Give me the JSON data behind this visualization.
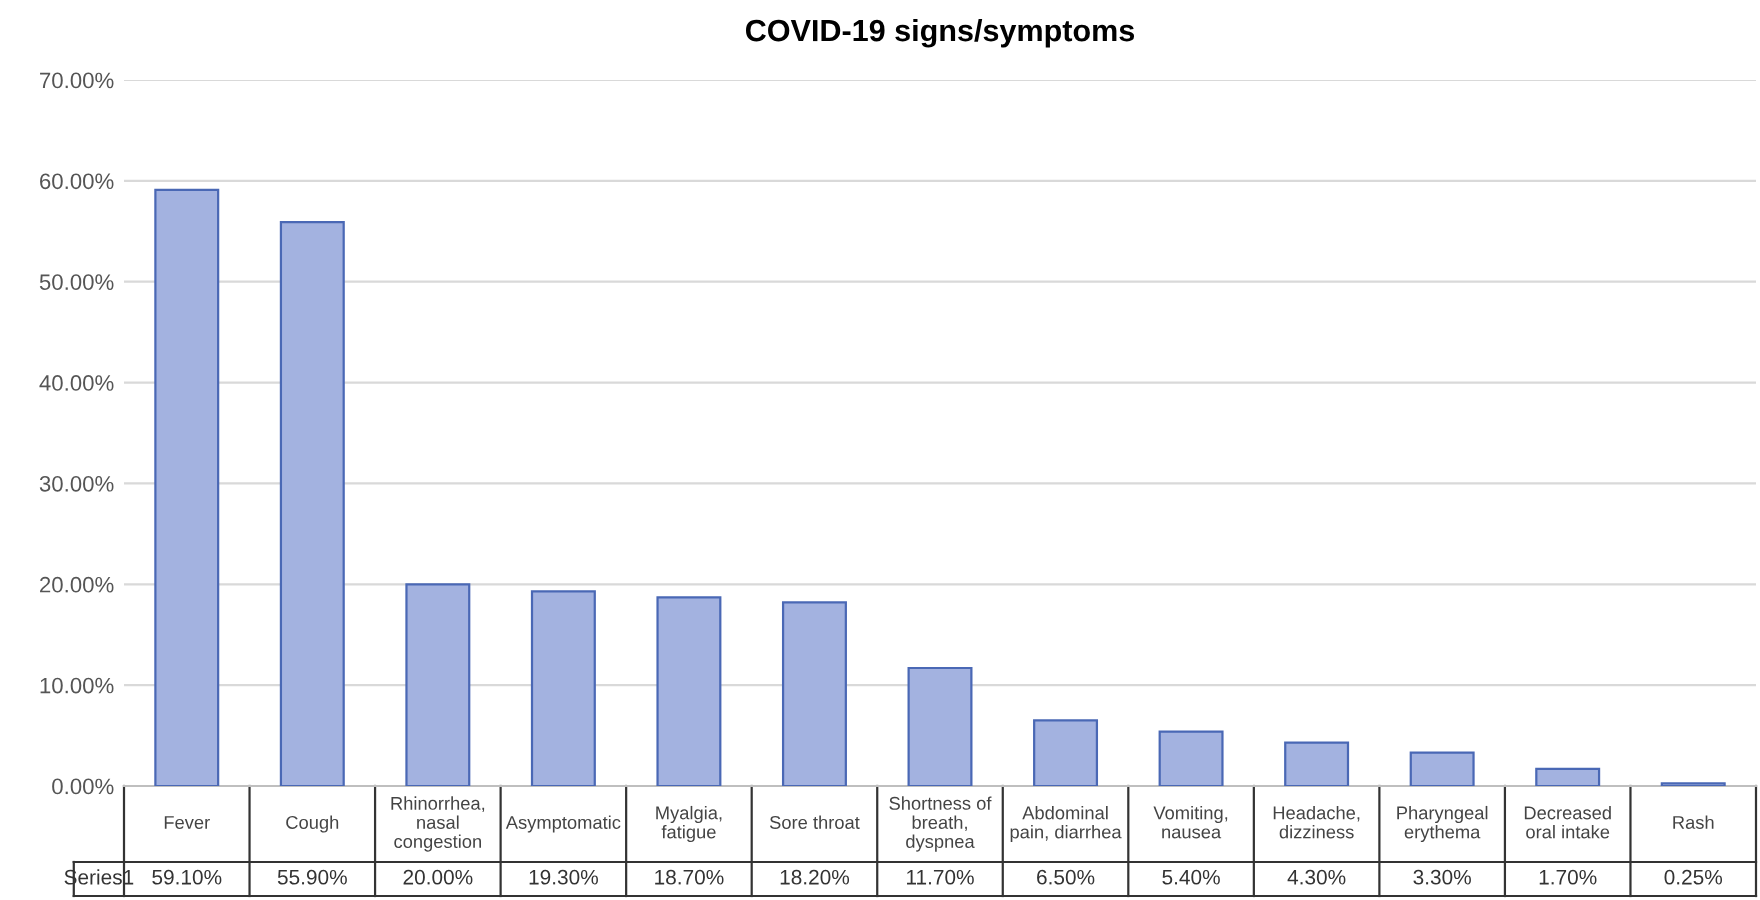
{
  "chart_data": {
    "type": "bar",
    "title": "COVID-19 signs/symptoms",
    "categories": [
      "Fever",
      "Cough",
      "Rhinorrhea,\nnasal\ncongestion",
      "Asymptomatic",
      "Myalgia,\nfatigue",
      "Sore throat",
      "Shortness of\nbreath,\ndyspnea",
      "Abdominal\npain, diarrhea",
      "Vomiting,\nnausea",
      "Headache,\ndizziness",
      "Pharyngeal\nerythema",
      "Decreased\noral intake",
      "Rash"
    ],
    "series": [
      {
        "name": "Series1",
        "color": "#a3b2e0",
        "values": [
          59.1,
          55.9,
          20.0,
          19.3,
          18.7,
          18.2,
          11.7,
          6.5,
          5.4,
          4.3,
          3.3,
          1.7,
          0.25
        ],
        "value_labels": [
          "59.10%",
          "55.90%",
          "20.00%",
          "19.30%",
          "18.70%",
          "18.20%",
          "11.70%",
          "6.50%",
          "5.40%",
          "4.30%",
          "3.30%",
          "1.70%",
          "0.25%"
        ]
      }
    ],
    "ylim": [
      0,
      70
    ],
    "yticks": [
      {
        "value": 0,
        "label": "0.00%"
      },
      {
        "value": 10,
        "label": "10.00%"
      },
      {
        "value": 20,
        "label": "20.00%"
      },
      {
        "value": 30,
        "label": "30.00%"
      },
      {
        "value": 40,
        "label": "40.00%"
      },
      {
        "value": 50,
        "label": "50.00%"
      },
      {
        "value": 60,
        "label": "60.00%"
      },
      {
        "value": 70,
        "label": "70.00%"
      }
    ],
    "grid": "y"
  }
}
